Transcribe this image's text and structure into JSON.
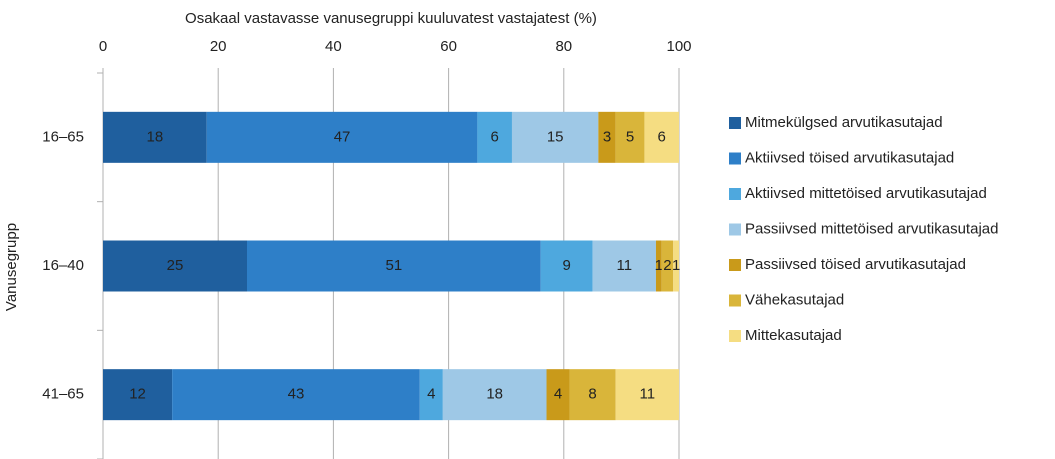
{
  "chart_data": {
    "type": "stacked_barh",
    "xlabel": "Osakaal vastavasse vanusegruppi kuuluvatest vastajatest (%)",
    "ylabel": "Vanusegrupp",
    "categories": [
      "16–65",
      "16–40",
      "41–65"
    ],
    "series": [
      {
        "name": "Mitmekülgsed arvutikasutajad",
        "color": "#1f5f9e",
        "values": [
          18,
          25,
          12
        ]
      },
      {
        "name": "Aktiivsed töised arvutikasutajad",
        "color": "#2e7fc8",
        "values": [
          47,
          51,
          43
        ]
      },
      {
        "name": "Aktiivsed mittetöised arvutikasutajad",
        "color": "#4ea8de",
        "values": [
          6,
          9,
          4
        ]
      },
      {
        "name": "Passiivsed mittetöised arvutikasutajad",
        "color": "#9ec8e6",
        "values": [
          15,
          11,
          18
        ]
      },
      {
        "name": "Passiivsed töised arvutikasutajad",
        "color": "#c99a1a",
        "values": [
          3,
          1,
          4
        ]
      },
      {
        "name": "Vähekasutajad",
        "color": "#d9b53a",
        "values": [
          5,
          2,
          8
        ]
      },
      {
        "name": "Mittekasutajad",
        "color": "#f5dd82",
        "values": [
          6,
          1,
          11
        ]
      }
    ],
    "xlim": [
      0,
      100
    ],
    "xticks": [
      0,
      20,
      40,
      60,
      80,
      100
    ],
    "grid": true,
    "legend": "right"
  }
}
